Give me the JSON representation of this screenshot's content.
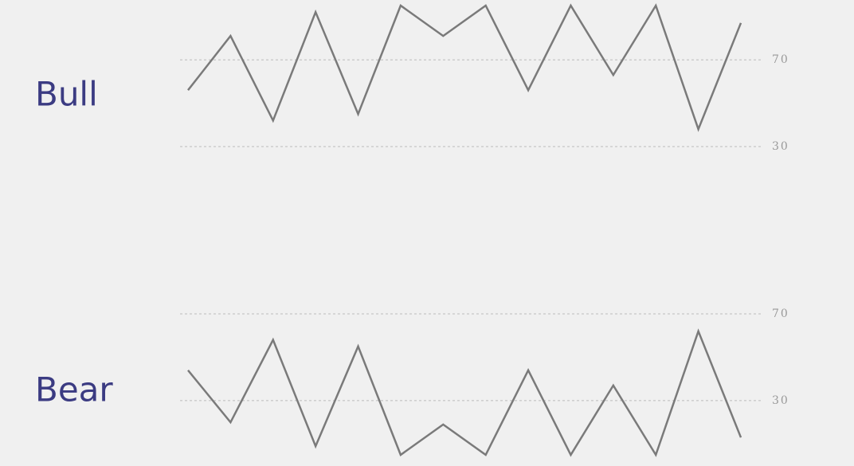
{
  "chart_data": [
    {
      "type": "line",
      "title": "Bull",
      "categories": [
        null,
        null,
        null,
        null,
        null,
        null,
        null,
        null,
        null,
        null,
        null,
        null,
        null,
        null
      ],
      "values": [
        56,
        81,
        42,
        92,
        45,
        95,
        81,
        95,
        56,
        95,
        63,
        95,
        38,
        87
      ],
      "color": "#7a7a7a",
      "ylim": [
        30,
        95
      ],
      "yticks": [
        30,
        70
      ],
      "grid": true
    },
    {
      "type": "line",
      "title": "Bear",
      "categories": [
        null,
        null,
        null,
        null,
        null,
        null,
        null,
        null,
        null,
        null,
        null,
        null,
        null,
        null
      ],
      "values": [
        44,
        20,
        58,
        9,
        55,
        5,
        19,
        5,
        44,
        5,
        37,
        5,
        62,
        13
      ],
      "color": "#7a7a7a",
      "ylim": [
        5,
        70
      ],
      "yticks": [
        30,
        70
      ],
      "grid": true
    }
  ]
}
